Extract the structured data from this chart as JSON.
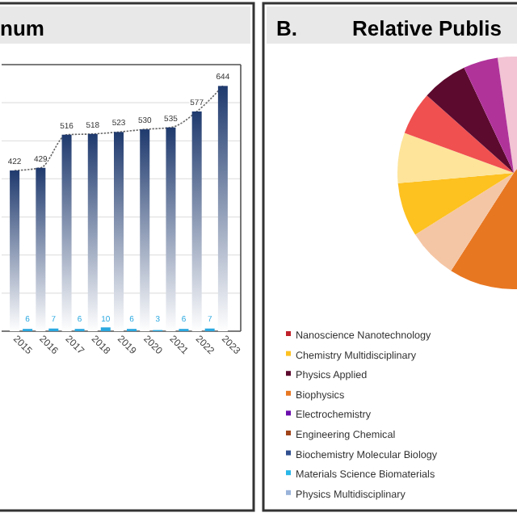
{
  "chart_data": [
    {
      "type": "bar",
      "title": "num",
      "categories": [
        "2015",
        "2016",
        "2017",
        "2018",
        "2019",
        "2020",
        "2021",
        "2022",
        "2023"
      ],
      "ylim": [
        0,
        700
      ],
      "yticks": [
        {
          "value": 0,
          "label": null
        },
        {
          "value": 100,
          "label": null
        },
        {
          "value": 200,
          "label": null
        },
        {
          "value": 300,
          "label": null
        },
        {
          "value": 400,
          "label": null
        },
        {
          "value": 500,
          "label": null
        },
        {
          "value": 600,
          "label": null
        },
        {
          "value": 700,
          "label": null
        }
      ],
      "tick_labels": "x",
      "grid": "y",
      "series": [
        {
          "type": "bar",
          "color": "#1f3a6e",
          "values": [
            422,
            429,
            516,
            518,
            523,
            530,
            535,
            577,
            644
          ],
          "value_labels": [
            "422",
            "429",
            "516",
            "518",
            "523",
            "530",
            "535",
            "577",
            "644"
          ]
        },
        {
          "type": "bar",
          "color": "#29a8e0",
          "values": [
            6,
            7,
            6,
            10,
            6,
            3,
            6,
            7,
            null
          ],
          "value_labels": [
            "6",
            "7",
            "6",
            "10",
            "6",
            "3",
            "6",
            "7",
            null
          ]
        },
        {
          "type": "line",
          "color": "#666666",
          "line_style": "dashed",
          "values": [
            422,
            429,
            516,
            518,
            523,
            530,
            535,
            577,
            644
          ]
        }
      ]
    },
    {
      "type": "pie",
      "title": "Relative Publis",
      "annotations": [
        "B."
      ],
      "categories": [
        null,
        null,
        null,
        null,
        null,
        null,
        null,
        null
      ],
      "values": [
        13.3,
        48,
        7,
        7.5,
        7,
        6,
        6.4,
        4.8
      ],
      "colors": [
        "#f2c4d4",
        "#e87722",
        "#f5c6a5",
        "#fdc120",
        "#fde49a",
        "#f05050",
        "#5c0a2e",
        "#b0339a"
      ]
    },
    {
      "type": "other",
      "categories": [
        "Nanoscience Nanotechnology",
        "Chemistry Multidisciplinary",
        "Physics Applied",
        "Biophysics",
        "Electrochemistry",
        "Engineering Chemical",
        "Biochemistry Molecular Biology",
        "Materials Science Biomaterials",
        "Physics Multidisciplinary"
      ],
      "colors": [
        "#c0202a",
        "#fdc120",
        "#5c0a2e",
        "#e87722",
        "#6a0dad",
        "#a0441a",
        "#2f4f8f",
        "#29b6e8",
        "#9ab3d9"
      ]
    }
  ]
}
